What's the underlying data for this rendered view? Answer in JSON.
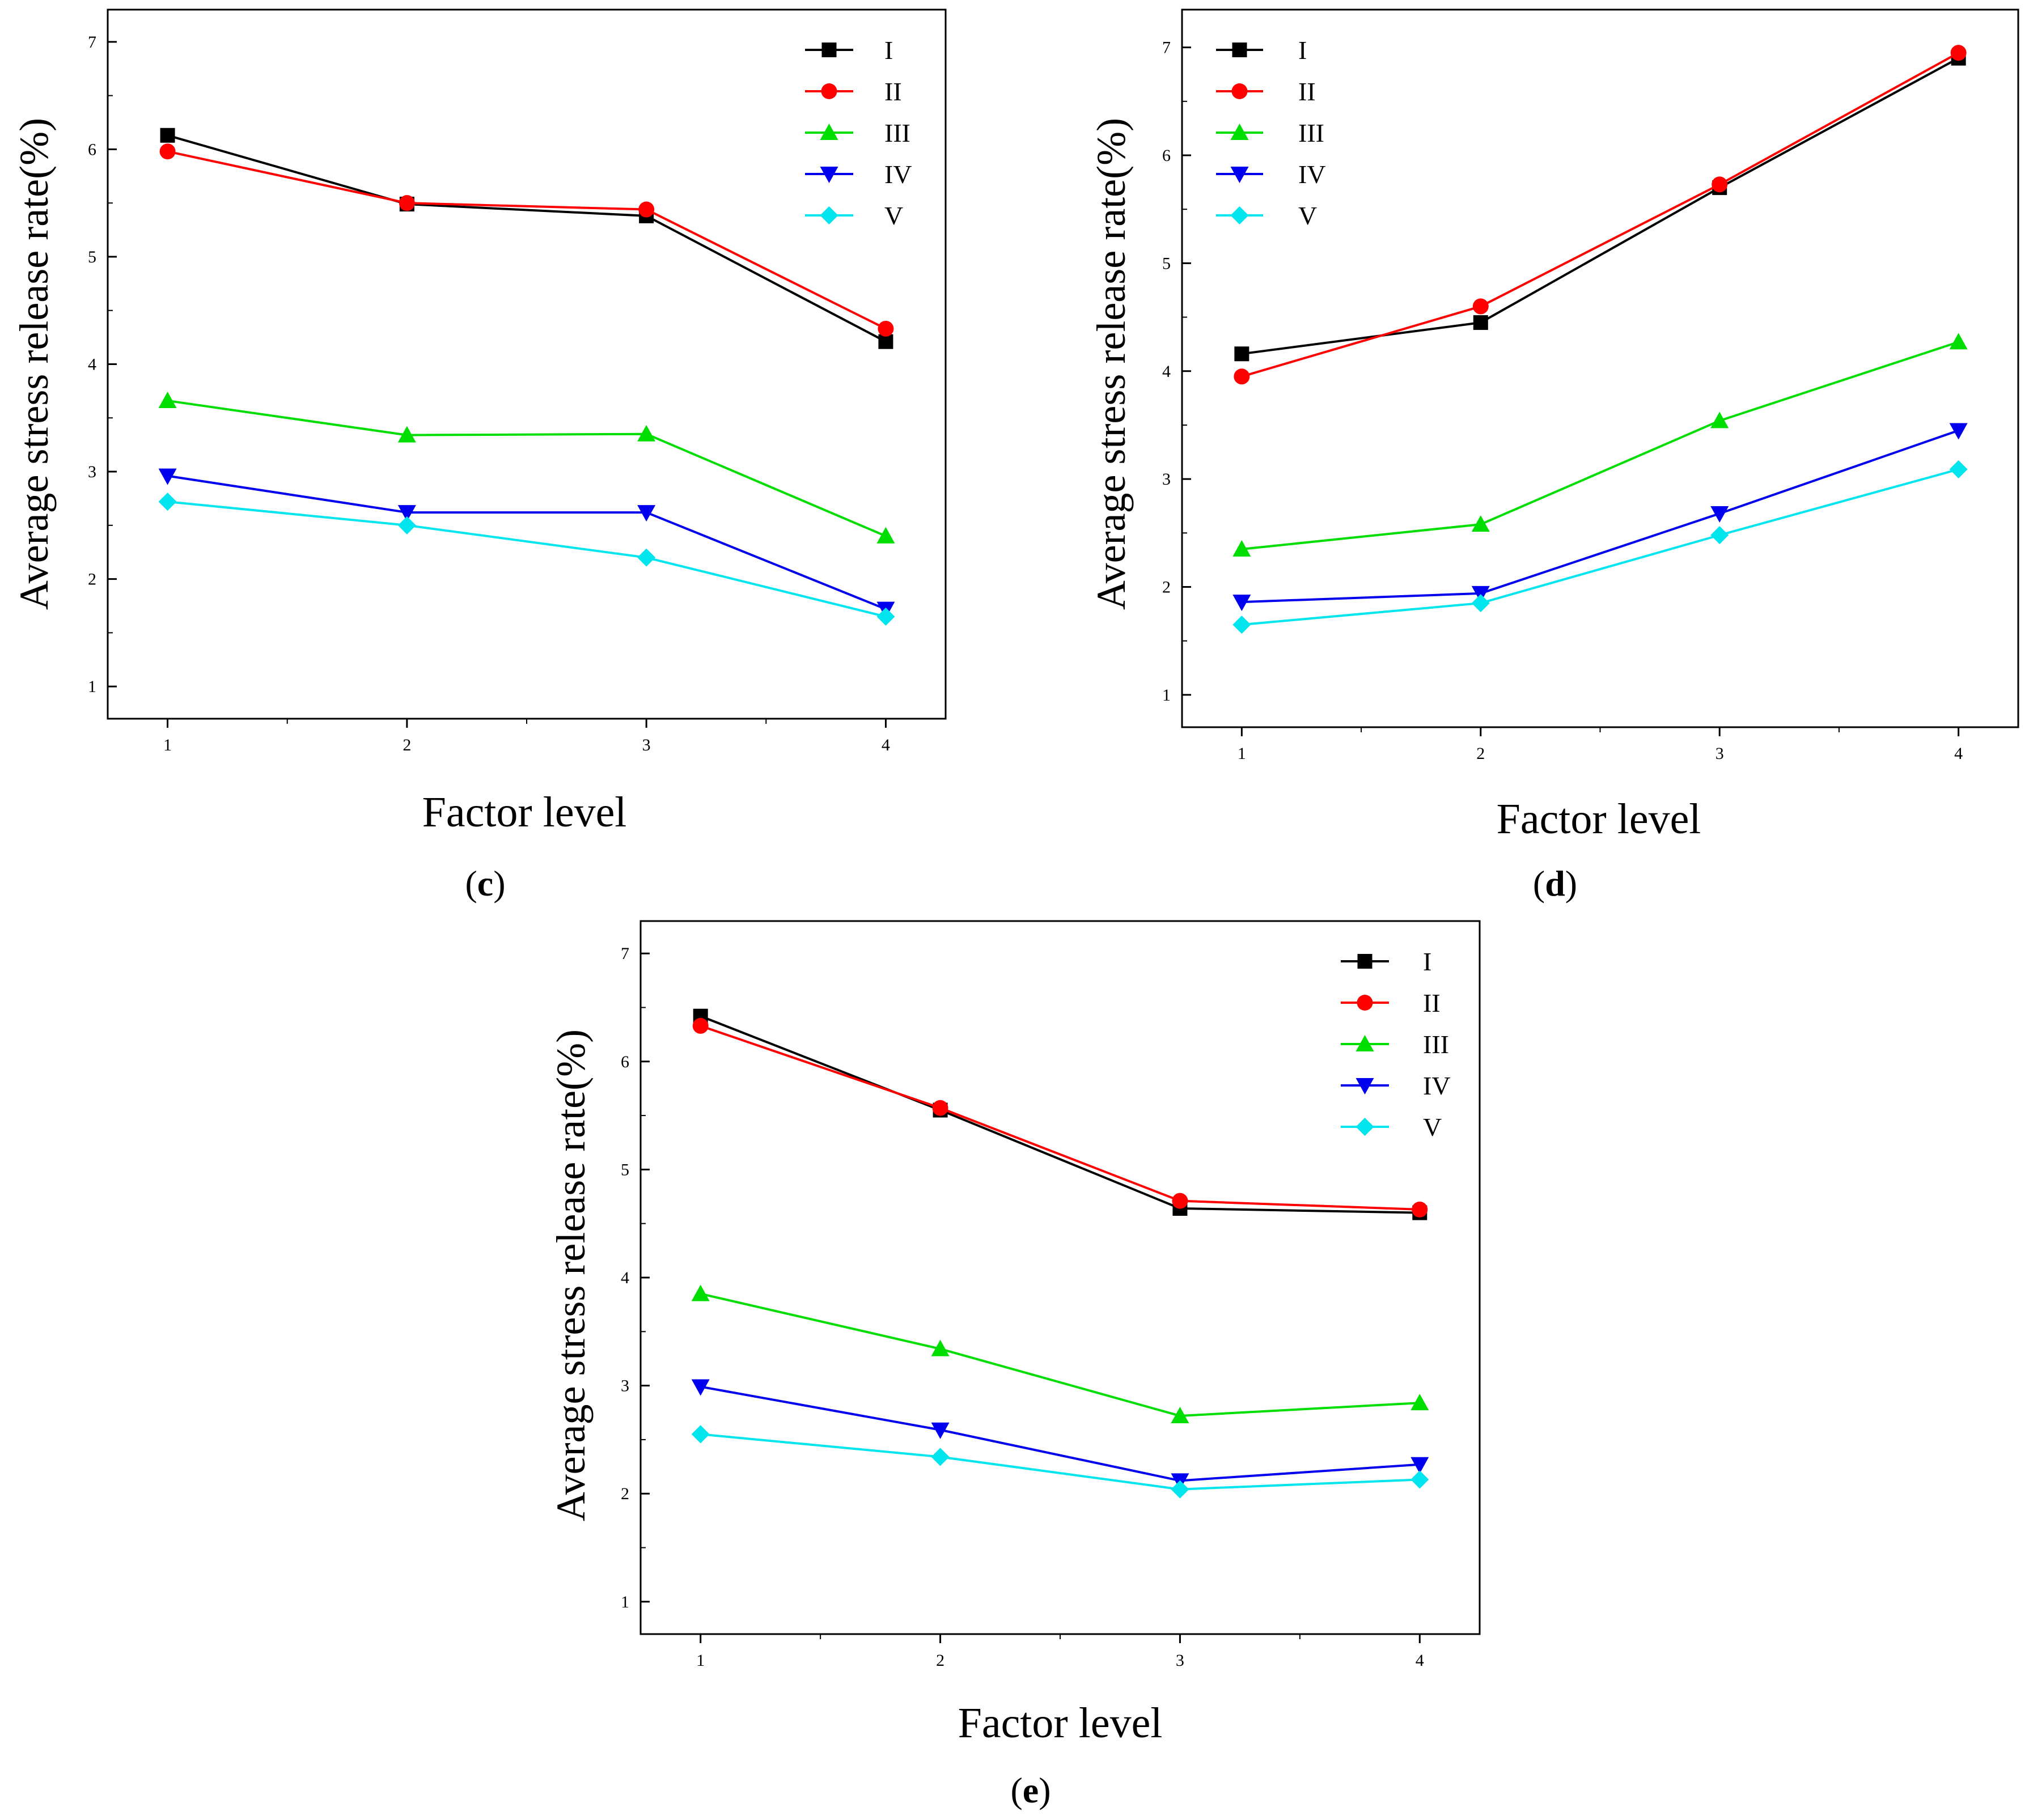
{
  "chart_data": [
    {
      "type": "line",
      "panel_label": "c",
      "xlabel": "Factor level",
      "ylabel": "Average stress release rate(%)",
      "x": [
        1,
        2,
        3,
        4
      ],
      "xlim": [
        0.75,
        4.25
      ],
      "ylim": [
        0.7,
        7.3
      ],
      "xticks": [
        1,
        2,
        3,
        4
      ],
      "yticks": [
        1,
        2,
        3,
        4,
        5,
        6,
        7
      ],
      "legend_position": "top-right",
      "series": [
        {
          "name": "I",
          "color": "#000000",
          "marker": "square",
          "values": [
            6.13,
            5.49,
            5.38,
            4.21
          ]
        },
        {
          "name": "II",
          "color": "#ff0000",
          "marker": "circle",
          "values": [
            5.98,
            5.5,
            5.44,
            4.33
          ]
        },
        {
          "name": "III",
          "color": "#00dd00",
          "marker": "triangle-up",
          "values": [
            3.66,
            3.34,
            3.35,
            2.4
          ]
        },
        {
          "name": "IV",
          "color": "#0000ee",
          "marker": "triangle-down",
          "values": [
            2.96,
            2.62,
            2.62,
            1.72
          ]
        },
        {
          "name": "V",
          "color": "#00e5ee",
          "marker": "diamond",
          "values": [
            2.72,
            2.5,
            2.2,
            1.65
          ]
        }
      ]
    },
    {
      "type": "line",
      "panel_label": "d",
      "xlabel": "Factor level",
      "ylabel": "Average stress release rate(%)",
      "x": [
        1,
        2,
        3,
        4
      ],
      "xlim": [
        0.75,
        4.25
      ],
      "ylim": [
        0.7,
        7.35
      ],
      "xticks": [
        1,
        2,
        3,
        4
      ],
      "yticks": [
        1,
        2,
        3,
        4,
        5,
        6,
        7
      ],
      "legend_position": "top-left",
      "series": [
        {
          "name": "I",
          "color": "#000000",
          "marker": "square",
          "values": [
            4.16,
            4.45,
            5.7,
            6.9
          ]
        },
        {
          "name": "II",
          "color": "#ff0000",
          "marker": "circle",
          "values": [
            3.95,
            4.6,
            5.73,
            6.95
          ]
        },
        {
          "name": "III",
          "color": "#00dd00",
          "marker": "triangle-up",
          "values": [
            2.35,
            2.58,
            3.54,
            4.27
          ]
        },
        {
          "name": "IV",
          "color": "#0000ee",
          "marker": "triangle-down",
          "values": [
            1.86,
            1.94,
            2.68,
            3.45
          ]
        },
        {
          "name": "V",
          "color": "#00e5ee",
          "marker": "diamond",
          "values": [
            1.65,
            1.85,
            2.48,
            3.09
          ]
        }
      ]
    },
    {
      "type": "line",
      "panel_label": "e",
      "xlabel": "Factor level",
      "ylabel": "Average stress release rate(%)",
      "x": [
        1,
        2,
        3,
        4
      ],
      "xlim": [
        0.75,
        4.25
      ],
      "ylim": [
        0.7,
        7.3
      ],
      "xticks": [
        1,
        2,
        3,
        4
      ],
      "yticks": [
        1,
        2,
        3,
        4,
        5,
        6,
        7
      ],
      "legend_position": "top-right",
      "series": [
        {
          "name": "I",
          "color": "#000000",
          "marker": "square",
          "values": [
            6.42,
            5.55,
            4.64,
            4.6
          ]
        },
        {
          "name": "II",
          "color": "#ff0000",
          "marker": "circle",
          "values": [
            6.33,
            5.57,
            4.71,
            4.63
          ]
        },
        {
          "name": "III",
          "color": "#00dd00",
          "marker": "triangle-up",
          "values": [
            3.85,
            3.34,
            2.72,
            2.84
          ]
        },
        {
          "name": "IV",
          "color": "#0000ee",
          "marker": "triangle-down",
          "values": [
            2.99,
            2.59,
            2.12,
            2.27
          ]
        },
        {
          "name": "V",
          "color": "#00e5ee",
          "marker": "diamond",
          "values": [
            2.55,
            2.34,
            2.04,
            2.13
          ]
        }
      ]
    }
  ]
}
